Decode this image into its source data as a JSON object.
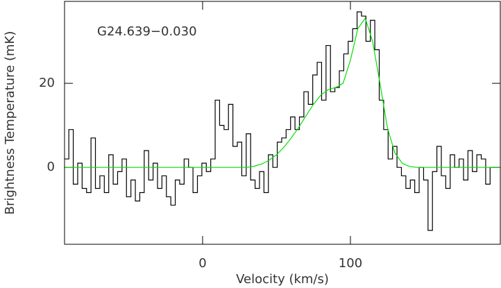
{
  "chart_data": {
    "type": "step",
    "annotation": "G24.639−0.030",
    "xlabel": "Velocity (km/s)",
    "ylabel": "Brightness Temperature (mK)",
    "xlim": [
      -93.4,
      201.4
    ],
    "ylim": [
      -18.3,
      39.5
    ],
    "xticks": [
      0,
      100
    ],
    "yticks": [
      0,
      20
    ],
    "series": [
      {
        "color": "#000000",
        "x": [
          -92,
          -89,
          -86,
          -83,
          -80,
          -77,
          -74,
          -71,
          -68,
          -65,
          -62,
          -59,
          -56,
          -53,
          -50,
          -47,
          -44,
          -41,
          -38,
          -35,
          -32,
          -29,
          -26,
          -23,
          -20,
          -17,
          -14,
          -11,
          -8,
          -5,
          -2,
          1,
          4,
          7,
          10,
          13,
          16,
          19,
          22,
          25,
          28,
          31,
          34,
          37,
          40,
          43,
          46,
          49,
          52,
          55,
          58,
          61,
          64,
          67,
          70,
          73,
          76,
          79,
          82,
          85,
          88,
          91,
          94,
          97,
          100,
          103,
          106,
          109,
          112,
          115,
          118,
          121,
          124,
          127,
          130,
          133,
          136,
          139,
          142,
          145,
          148,
          151,
          154,
          157,
          160,
          163,
          166,
          169,
          172,
          175,
          178,
          181,
          184,
          187,
          190,
          193,
          196,
          199
        ],
        "values": [
          2,
          9,
          -4,
          1,
          -5,
          -6,
          7,
          -5,
          -2,
          -6,
          3,
          -4,
          -1,
          2,
          -7,
          -3,
          -8,
          -6,
          4,
          -3,
          1,
          -5,
          -2,
          -7,
          -9,
          -3,
          -4,
          2,
          0,
          -6,
          -2,
          1,
          -1,
          2,
          16,
          10,
          9,
          15,
          5,
          6,
          -2,
          8,
          -3,
          -5,
          -1,
          -6,
          3,
          0,
          6,
          7,
          9,
          12,
          9,
          12,
          18,
          15,
          22,
          25,
          16,
          29,
          18,
          19,
          23,
          27,
          30,
          33,
          37,
          36,
          30,
          35,
          28,
          16,
          9,
          2,
          5,
          0,
          -2,
          -5,
          -3,
          -6,
          0,
          -3,
          -15,
          -1,
          5,
          -2,
          -5,
          3,
          0,
          2,
          -3,
          4,
          -1,
          3,
          2,
          -4,
          0,
          0
        ]
      },
      {
        "color": "#00e000",
        "x": [
          -93,
          30,
          35,
          40,
          45,
          50,
          55,
          60,
          65,
          70,
          75,
          80,
          85,
          90,
          95,
          100,
          105,
          110,
          115,
          120,
          125,
          130,
          135,
          140,
          145,
          201
        ],
        "values": [
          0,
          0,
          0.3,
          0.8,
          1.7,
          3.0,
          4.8,
          7.0,
          9.5,
          12.3,
          15.0,
          17.2,
          18.5,
          19.0,
          20.0,
          25.5,
          33,
          35.5,
          30,
          20,
          9.5,
          3.5,
          1,
          0.2,
          0,
          0
        ]
      }
    ]
  }
}
